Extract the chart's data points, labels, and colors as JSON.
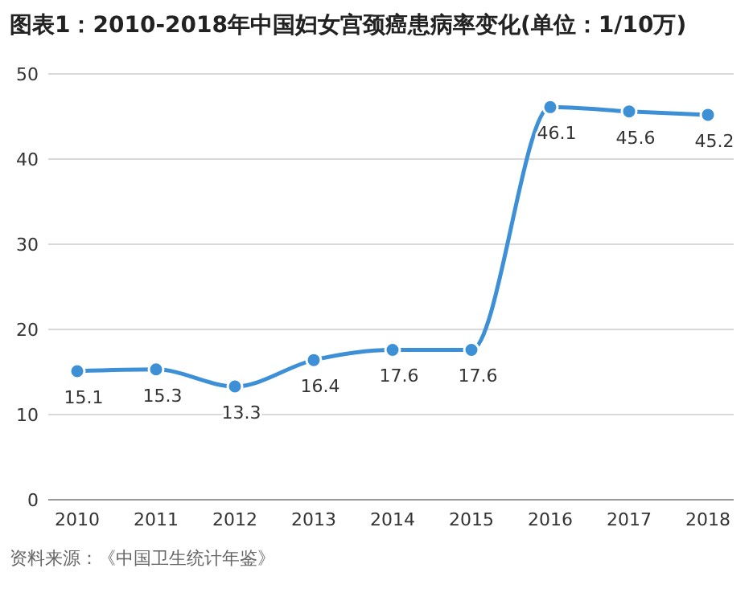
{
  "chart_data": {
    "type": "line",
    "title": "图表1：2010-2018年中国妇女宫颈癌患病率变化(单位：1/10万)",
    "categories": [
      "2010",
      "2011",
      "2012",
      "2013",
      "2014",
      "2015",
      "2016",
      "2017",
      "2018"
    ],
    "series": [
      {
        "color": "#3d8fd6",
        "values": [
          15.1,
          15.3,
          13.3,
          16.4,
          17.6,
          17.6,
          46.1,
          45.6,
          45.2
        ]
      }
    ],
    "ylim": [
      0,
      50
    ],
    "yticks": [
      0,
      10,
      20,
      30,
      40,
      50
    ],
    "grid": "y",
    "marker": "circle",
    "line_style": "solid",
    "data_labels": true,
    "annotations": [
      "资料来源：《中国卫生统计年鉴》"
    ]
  }
}
